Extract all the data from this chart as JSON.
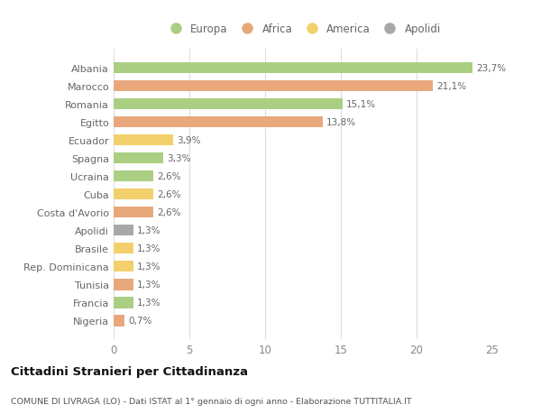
{
  "categories": [
    "Albania",
    "Marocco",
    "Romania",
    "Egitto",
    "Ecuador",
    "Spagna",
    "Ucraina",
    "Cuba",
    "Costa d'Avorio",
    "Apolidi",
    "Brasile",
    "Rep. Dominicana",
    "Tunisia",
    "Francia",
    "Nigeria"
  ],
  "values": [
    23.7,
    21.1,
    15.1,
    13.8,
    3.9,
    3.3,
    2.6,
    2.6,
    2.6,
    1.3,
    1.3,
    1.3,
    1.3,
    1.3,
    0.7
  ],
  "labels": [
    "23,7%",
    "21,1%",
    "15,1%",
    "13,8%",
    "3,9%",
    "3,3%",
    "2,6%",
    "2,6%",
    "2,6%",
    "1,3%",
    "1,3%",
    "1,3%",
    "1,3%",
    "1,3%",
    "0,7%"
  ],
  "continent": [
    "Europa",
    "Africa",
    "Europa",
    "Africa",
    "America",
    "Europa",
    "Europa",
    "America",
    "Africa",
    "Apolidi",
    "America",
    "America",
    "Africa",
    "Europa",
    "Africa"
  ],
  "colors": {
    "Europa": "#aacf82",
    "Africa": "#e8a87c",
    "America": "#f2d06b",
    "Apolidi": "#a8a8a8"
  },
  "title": "Cittadini Stranieri per Cittadinanza",
  "subtitle": "COMUNE DI LIVRAGA (LO) - Dati ISTAT al 1° gennaio di ogni anno - Elaborazione TUTTITALIA.IT",
  "xlim": [
    0,
    25
  ],
  "xticks": [
    0,
    5,
    10,
    15,
    20,
    25
  ],
  "bg_color": "#ffffff",
  "grid_color": "#dddddd",
  "legend_order": [
    "Europa",
    "Africa",
    "America",
    "Apolidi"
  ]
}
